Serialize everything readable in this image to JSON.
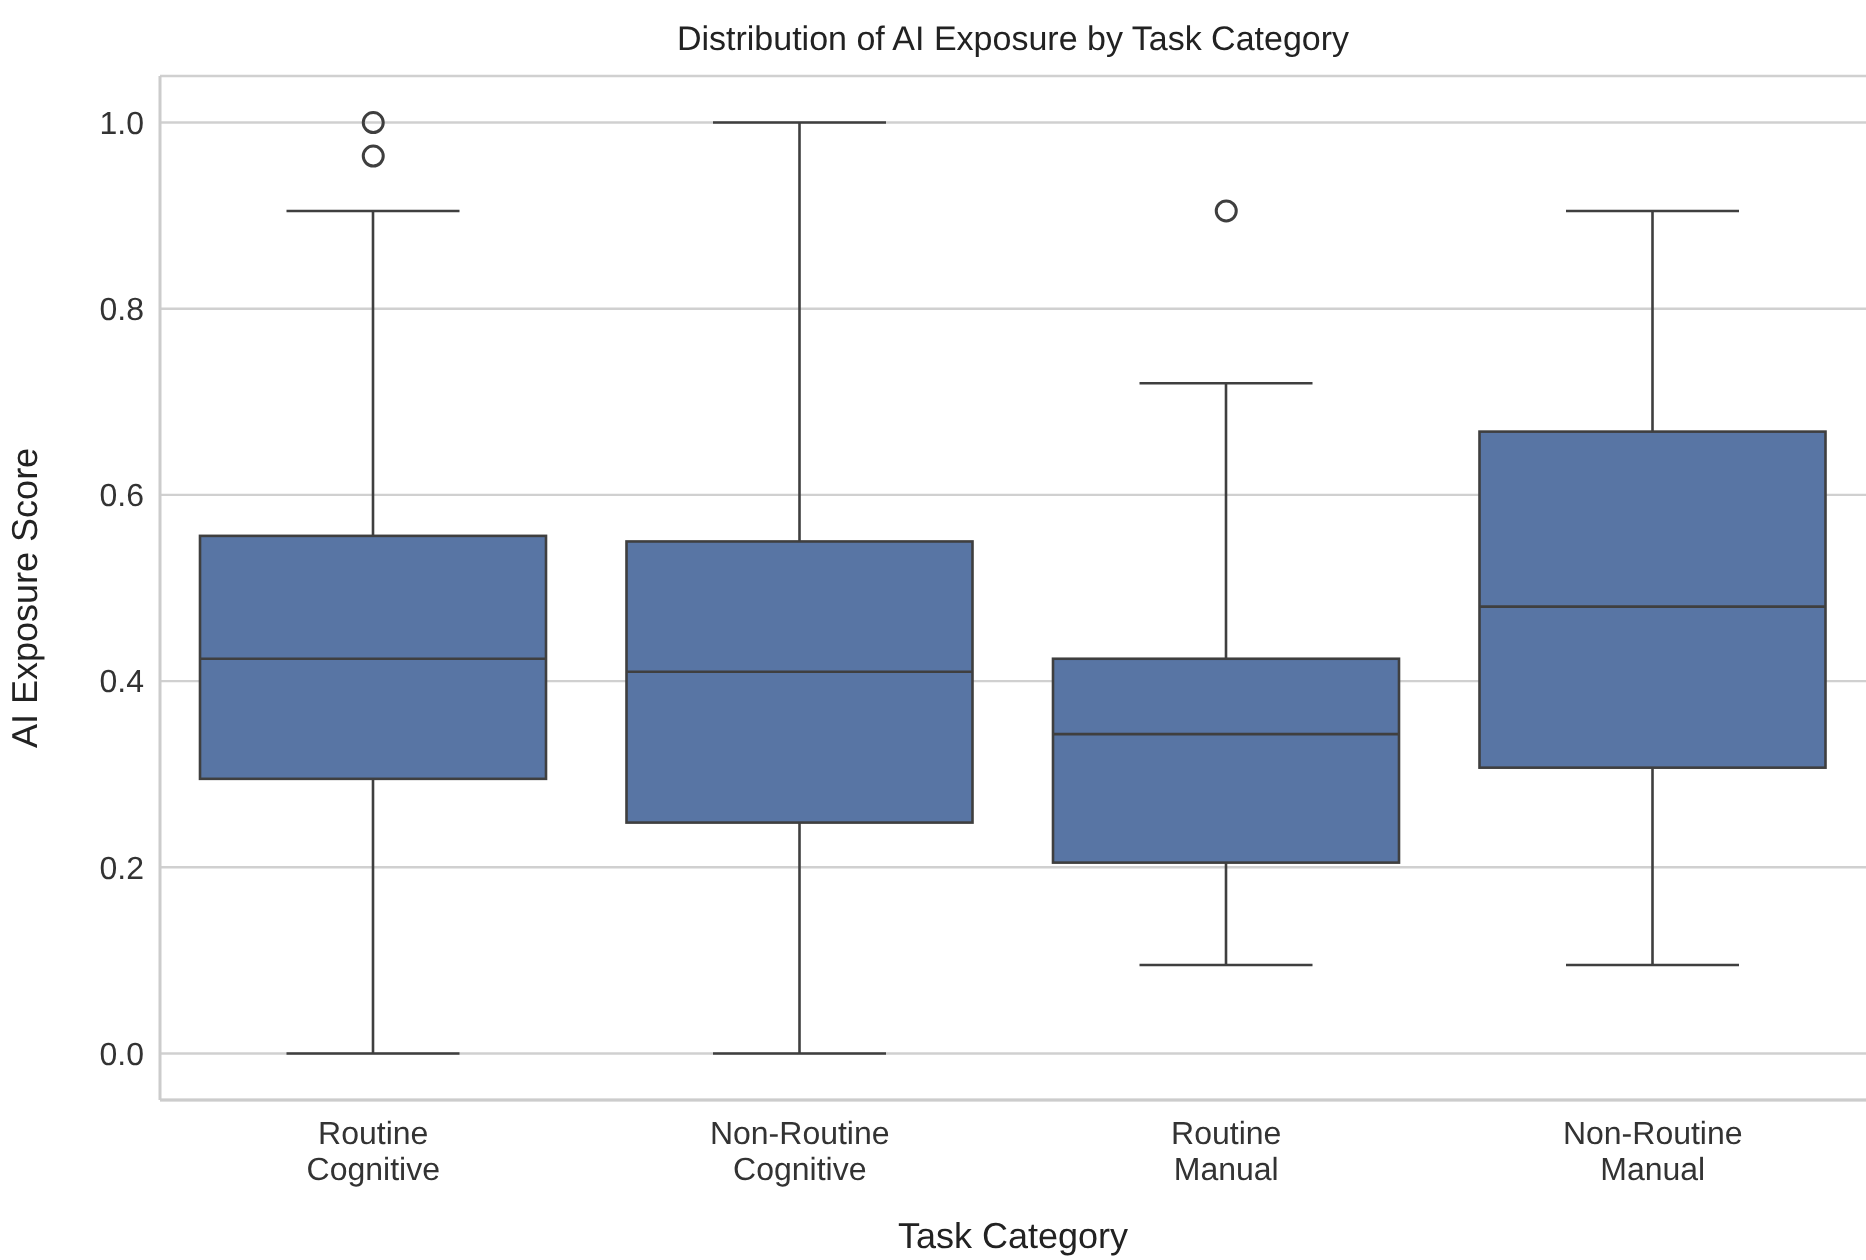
{
  "chart_data": {
    "type": "box",
    "title": "Distribution of AI Exposure by Task Category",
    "xlabel": "Task Category",
    "ylabel": "AI Exposure Score",
    "categories": [
      "Routine\nCognitive",
      "Non-Routine\nCognitive",
      "Routine\nManual",
      "Non-Routine\nManual"
    ],
    "boxes": [
      {
        "low": 0.0,
        "q1": 0.295,
        "median": 0.424,
        "q3": 0.556,
        "high": 0.905,
        "outliers": [
          1.0,
          0.964
        ]
      },
      {
        "low": 0.0,
        "q1": 0.248,
        "median": 0.41,
        "q3": 0.55,
        "high": 1.0
      },
      {
        "low": 0.095,
        "q1": 0.205,
        "median": 0.343,
        "q3": 0.424,
        "high": 0.72,
        "outliers": [
          0.905
        ]
      },
      {
        "low": 0.095,
        "q1": 0.307,
        "median": 0.48,
        "q3": 0.668,
        "high": 0.905
      }
    ],
    "color": "#5875a4",
    "ylim": [
      -0.05,
      1.05
    ],
    "yticks": [
      {
        "value": 0,
        "label": "0.0"
      },
      0.2,
      0.4,
      0.6,
      0.8,
      {
        "value": 1,
        "label": "1.0"
      }
    ],
    "grid": "y"
  }
}
